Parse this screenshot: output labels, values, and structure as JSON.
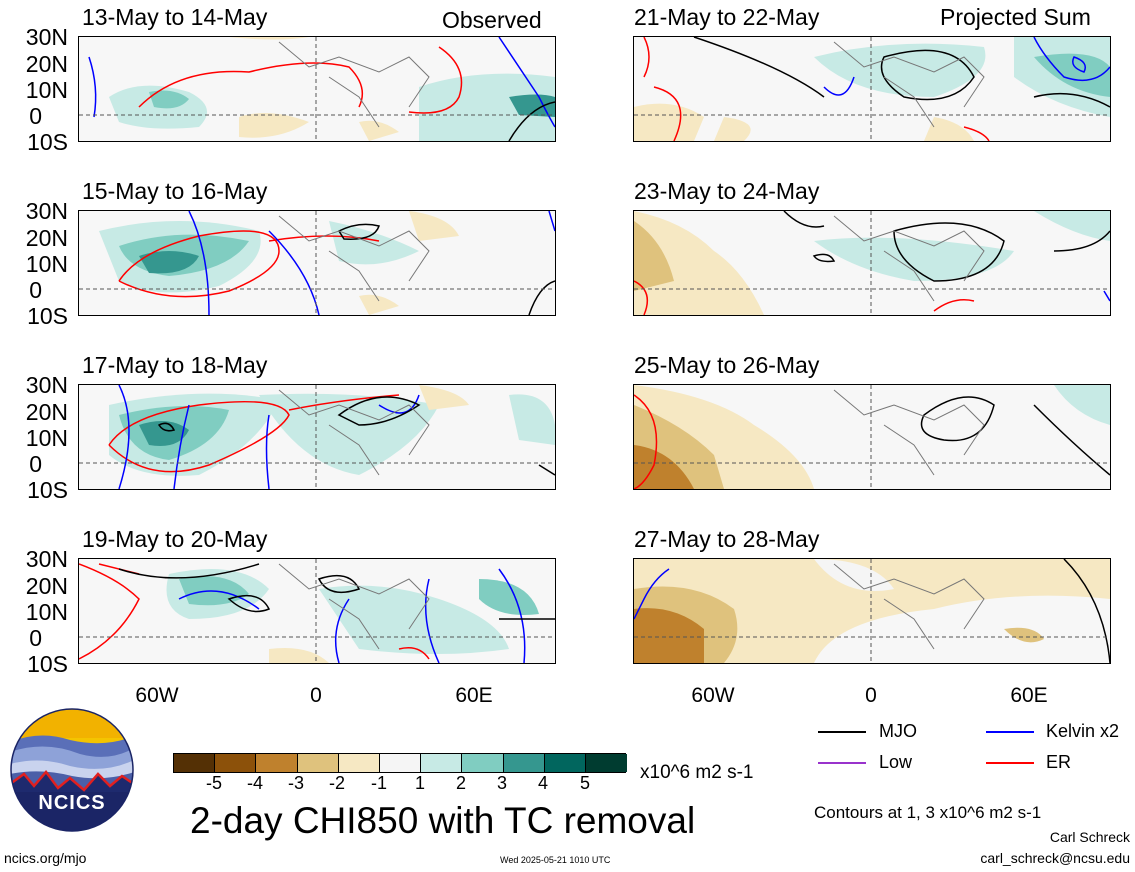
{
  "panels": {
    "observed": [
      {
        "title": "13-May to 14-May"
      },
      {
        "title": "15-May to 16-May"
      },
      {
        "title": "17-May to 18-May"
      },
      {
        "title": "19-May to 20-May"
      }
    ],
    "projected": [
      {
        "title": "21-May to 22-May"
      },
      {
        "title": "23-May to 24-May"
      },
      {
        "title": "25-May to 26-May"
      },
      {
        "title": "27-May to 28-May"
      }
    ],
    "observed_label": "Observed",
    "projected_label": "Projected Sum"
  },
  "axes": {
    "lat_labels": [
      "30N",
      "20N",
      "10N",
      "0",
      "10S"
    ],
    "lon_labels": [
      "60W",
      "0",
      "60E"
    ]
  },
  "colorbar": {
    "ticks": [
      "-5",
      "-4",
      "-3",
      "-2",
      "-1",
      "1",
      "2",
      "3",
      "4",
      "5"
    ],
    "colors": [
      "#543005",
      "#8c510a",
      "#bf812d",
      "#dfc27d",
      "#f6e8c3",
      "#f5f5f5",
      "#c7eae5",
      "#80cdc1",
      "#35978f",
      "#01665e",
      "#003c30"
    ],
    "units": "x10^6 m2 s-1"
  },
  "main_title": "2-day CHI850 with TC removal",
  "legend": {
    "items": [
      {
        "label": "MJO",
        "color": "#000000"
      },
      {
        "label": "Kelvin x2",
        "color": "#0000ff"
      },
      {
        "label": "Low",
        "color": "#9933cc"
      },
      {
        "label": "ER",
        "color": "#ff0000"
      }
    ],
    "contours_note": "Contours at 1, 3 x10^6 m2 s-1"
  },
  "logo": {
    "text": "NCICS"
  },
  "footer": {
    "url": "ncics.org/mjo",
    "timestamp": "Wed 2025-05-21 1010 UTC",
    "author": "Carl Schreck",
    "email": "carl_schreck@ncsu.edu"
  }
}
